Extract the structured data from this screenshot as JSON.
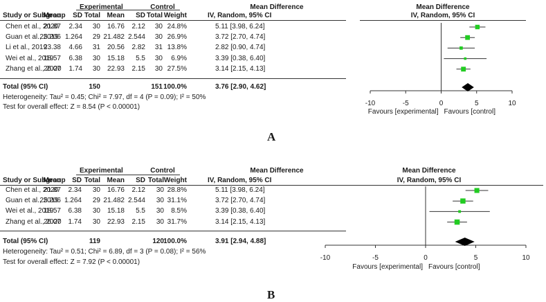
{
  "headers": {
    "study": "Study or Subgroup",
    "experimental": "Experimental",
    "control": "Control",
    "mean": "Mean",
    "sd": "SD",
    "total": "Total",
    "weight": "Weight",
    "md": "Mean Difference",
    "md_sub": "IV, Random, 95% CI",
    "plot_title": "Mean Difference",
    "plot_sub": "IV, Random, 95% CI"
  },
  "chart_data": [
    {
      "type": "forest",
      "panel_label": "A",
      "studies": [
        {
          "name": "Chen et al., 2020",
          "exp_mean": "21.87",
          "exp_sd": "2.34",
          "exp_total": "30",
          "ctl_mean": "16.76",
          "ctl_sd": "2.12",
          "ctl_total": "30",
          "weight": "24.8%",
          "ci_text": "5.11 [3.98, 6.24]",
          "md": 5.11,
          "lo": 3.98,
          "hi": 6.24,
          "w": 24.8
        },
        {
          "name": "Guan et al., 2019",
          "exp_mean": "25.206",
          "exp_sd": "1.264",
          "exp_total": "29",
          "ctl_mean": "21.482",
          "ctl_sd": "2.544",
          "ctl_total": "30",
          "weight": "26.9%",
          "ci_text": "3.72 [2.70, 4.74]",
          "md": 3.72,
          "lo": 2.7,
          "hi": 4.74,
          "w": 26.9
        },
        {
          "name": "Li et al., 2019",
          "exp_mean": "23.38",
          "exp_sd": "4.66",
          "exp_total": "31",
          "ctl_mean": "20.56",
          "ctl_sd": "2.82",
          "ctl_total": "31",
          "weight": "13.8%",
          "ci_text": "2.82 [0.90, 4.74]",
          "md": 2.82,
          "lo": 0.9,
          "hi": 4.74,
          "w": 13.8
        },
        {
          "name": "Wei et al., 2019",
          "exp_mean": "18.57",
          "exp_sd": "6.38",
          "exp_total": "30",
          "ctl_mean": "15.18",
          "ctl_sd": "5.5",
          "ctl_total": "30",
          "weight": "6.9%",
          "ci_text": "3.39 [0.38, 6.40]",
          "md": 3.39,
          "lo": 0.38,
          "hi": 6.4,
          "w": 6.9
        },
        {
          "name": "Zhang et al., 2020",
          "exp_mean": "26.07",
          "exp_sd": "1.74",
          "exp_total": "30",
          "ctl_mean": "22.93",
          "ctl_sd": "2.15",
          "ctl_total": "30",
          "weight": "27.5%",
          "ci_text": "3.14 [2.15, 4.13]",
          "md": 3.14,
          "lo": 2.15,
          "hi": 4.13,
          "w": 27.5
        }
      ],
      "total": {
        "label": "Total (95% CI)",
        "exp_total": "150",
        "ctl_total": "151",
        "weight": "100.0%",
        "ci_text": "3.76 [2.90, 4.62]",
        "md": 3.76,
        "lo": 2.9,
        "hi": 4.62
      },
      "heterogeneity": "Heterogeneity: Tau² = 0.45; Chi² = 7.97, df = 4 (P = 0.09); I² = 50%",
      "overall": "Test for overall effect: Z = 8.54 (P < 0.00001)",
      "xlim": [
        -10,
        10
      ],
      "ticks": [
        -10,
        -5,
        0,
        5,
        10
      ],
      "favours_left": "Favours [experimental]",
      "favours_right": "Favours [control]"
    },
    {
      "type": "forest",
      "panel_label": "B",
      "studies": [
        {
          "name": "Chen et al., 2020",
          "exp_mean": "21.87",
          "exp_sd": "2.34",
          "exp_total": "30",
          "ctl_mean": "16.76",
          "ctl_sd": "2.12",
          "ctl_total": "30",
          "weight": "28.8%",
          "ci_text": "5.11 [3.98, 6.24]",
          "md": 5.11,
          "lo": 3.98,
          "hi": 6.24,
          "w": 28.8
        },
        {
          "name": "Guan et al., 2019",
          "exp_mean": "25.206",
          "exp_sd": "1.264",
          "exp_total": "29",
          "ctl_mean": "21.482",
          "ctl_sd": "2.544",
          "ctl_total": "30",
          "weight": "31.1%",
          "ci_text": "3.72 [2.70, 4.74]",
          "md": 3.72,
          "lo": 2.7,
          "hi": 4.74,
          "w": 31.1
        },
        {
          "name": "Wei et al., 2019",
          "exp_mean": "18.57",
          "exp_sd": "6.38",
          "exp_total": "30",
          "ctl_mean": "15.18",
          "ctl_sd": "5.5",
          "ctl_total": "30",
          "weight": "8.5%",
          "ci_text": "3.39 [0.38, 6.40]",
          "md": 3.39,
          "lo": 0.38,
          "hi": 6.4,
          "w": 8.5
        },
        {
          "name": "Zhang et al., 2020",
          "exp_mean": "26.07",
          "exp_sd": "1.74",
          "exp_total": "30",
          "ctl_mean": "22.93",
          "ctl_sd": "2.15",
          "ctl_total": "30",
          "weight": "31.7%",
          "ci_text": "3.14 [2.15, 4.13]",
          "md": 3.14,
          "lo": 2.15,
          "hi": 4.13,
          "w": 31.7
        }
      ],
      "total": {
        "label": "Total (95% CI)",
        "exp_total": "119",
        "ctl_total": "120",
        "weight": "100.0%",
        "ci_text": "3.91 [2.94, 4.88]",
        "md": 3.91,
        "lo": 2.94,
        "hi": 4.88
      },
      "heterogeneity": "Heterogeneity: Tau² = 0.51; Chi² = 6.89, df = 3 (P = 0.08); I² = 56%",
      "overall": "Test for overall effect: Z = 7.92 (P < 0.00001)",
      "xlim": [
        -10,
        10
      ],
      "ticks": [
        -10,
        -5,
        0,
        5,
        10
      ],
      "favours_left": "Favours [experimental]",
      "favours_right": "Favours [control]"
    }
  ],
  "colors": {
    "marker": "#22cc22",
    "diamond": "#000000",
    "line": "#333333"
  }
}
